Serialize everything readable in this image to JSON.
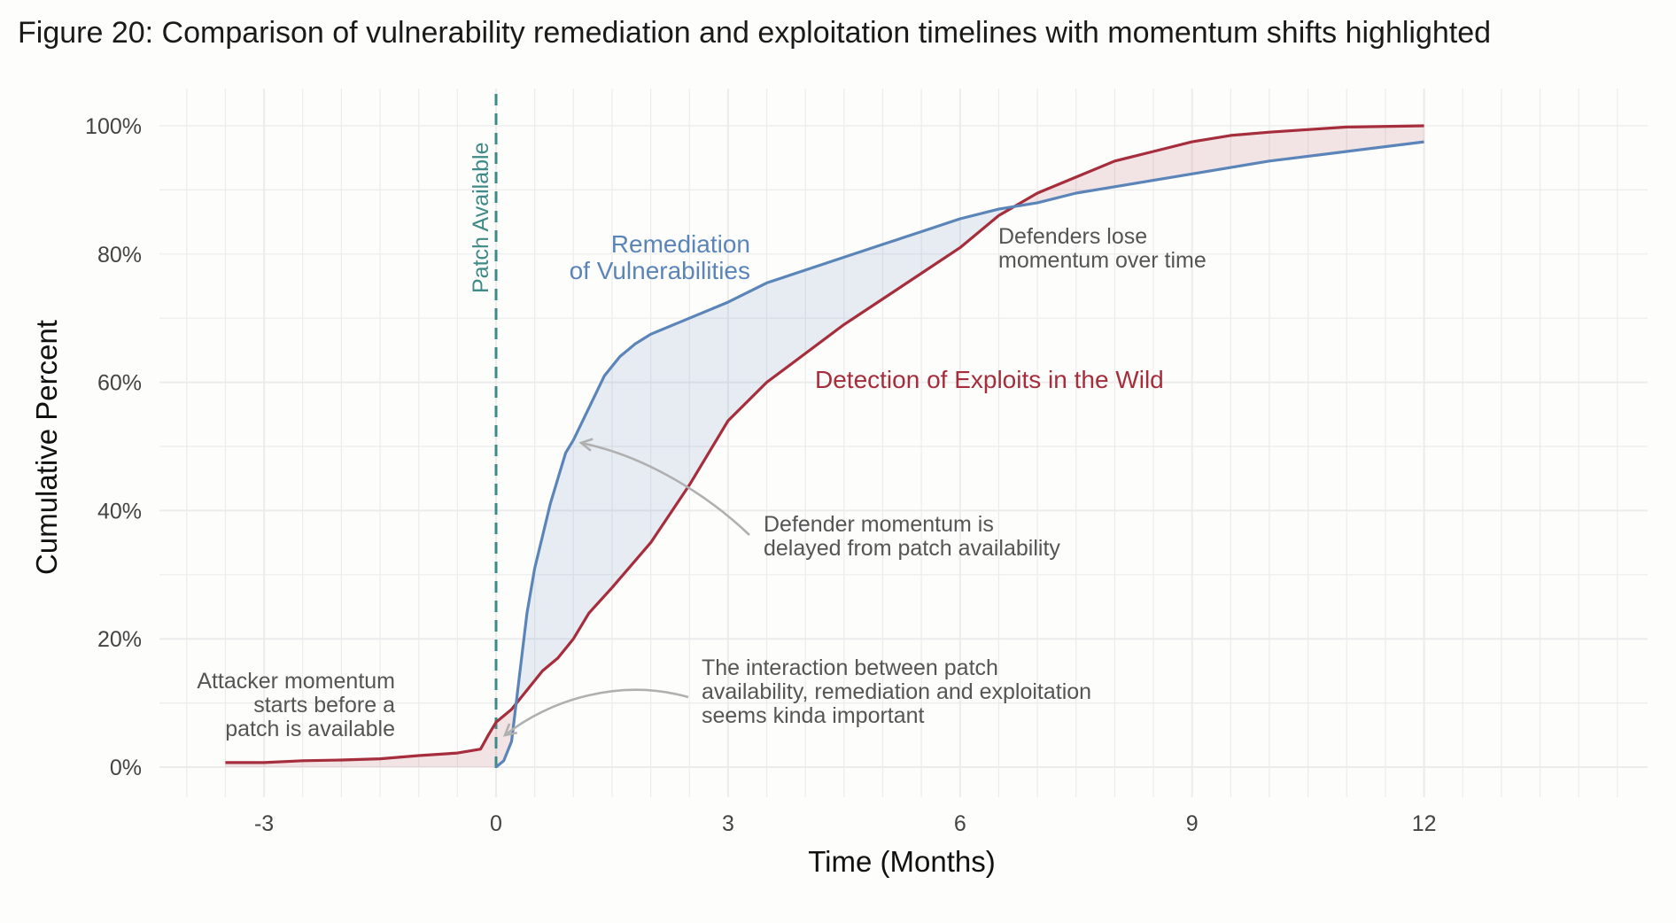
{
  "title": "Figure 20: Comparison of vulnerability remediation and exploitation timelines with momentum shifts highlighted",
  "colors": {
    "remediation": "#5b85b9",
    "exploitation": "#a62d3b",
    "patch_line": "#3e8a86",
    "annotation": "#555555",
    "arrow": "#b0b0b0",
    "grid": "#ececec"
  },
  "chart_data": {
    "type": "line",
    "title": "Figure 20: Comparison of vulnerability remediation and exploitation timelines with momentum shifts highlighted",
    "xlabel": "Time (Months)",
    "ylabel": "Cumulative Percent",
    "xlim": [
      -4,
      15
    ],
    "ylim": [
      -0.04,
      1.04
    ],
    "x_ticks": [
      -3,
      0,
      3,
      6,
      9,
      12
    ],
    "x_tick_labels": [
      "-3",
      "0",
      "3",
      "6",
      "9",
      "12"
    ],
    "y_ticks": [
      0,
      0.2,
      0.4,
      0.6,
      0.8,
      1.0
    ],
    "y_tick_labels": [
      "0%",
      "20%",
      "40%",
      "60%",
      "80%",
      "100%"
    ],
    "grid": true,
    "series": [
      {
        "name": "Remediation of Vulnerabilities",
        "label_lines": [
          "Remediation",
          "of Vulnerabilities"
        ],
        "color": "#5b85b9",
        "x": [
          0,
          0.1,
          0.2,
          0.3,
          0.4,
          0.5,
          0.6,
          0.7,
          0.8,
          0.9,
          1.0,
          1.2,
          1.4,
          1.6,
          1.8,
          2.0,
          2.5,
          3.0,
          3.5,
          4.0,
          4.5,
          5.0,
          5.5,
          6.0,
          6.5,
          7.0,
          7.5,
          8.0,
          9.0,
          10.0,
          11.0,
          12.0
        ],
        "y": [
          0,
          0.01,
          0.04,
          0.14,
          0.24,
          0.31,
          0.36,
          0.41,
          0.45,
          0.49,
          0.51,
          0.56,
          0.61,
          0.64,
          0.66,
          0.675,
          0.7,
          0.725,
          0.755,
          0.775,
          0.795,
          0.815,
          0.835,
          0.855,
          0.87,
          0.88,
          0.895,
          0.905,
          0.925,
          0.945,
          0.96,
          0.975
        ]
      },
      {
        "name": "Detection of Exploits in the Wild",
        "label_lines": [
          "Detection of Exploits in the Wild"
        ],
        "color": "#a62d3b",
        "x": [
          -3.5,
          -3.0,
          -2.5,
          -2.0,
          -1.5,
          -1.0,
          -0.5,
          -0.2,
          -0.1,
          0,
          0.1,
          0.2,
          0.4,
          0.6,
          0.8,
          1.0,
          1.2,
          1.5,
          2.0,
          2.5,
          3.0,
          3.5,
          4.0,
          4.5,
          5.0,
          5.5,
          6.0,
          6.5,
          7.0,
          7.5,
          8.0,
          8.5,
          9.0,
          9.5,
          10.0,
          11.0,
          12.0
        ],
        "y": [
          0.007,
          0.007,
          0.01,
          0.011,
          0.013,
          0.018,
          0.022,
          0.028,
          0.05,
          0.07,
          0.08,
          0.09,
          0.12,
          0.15,
          0.17,
          0.2,
          0.24,
          0.28,
          0.35,
          0.44,
          0.54,
          0.6,
          0.645,
          0.69,
          0.73,
          0.77,
          0.81,
          0.86,
          0.895,
          0.92,
          0.945,
          0.96,
          0.975,
          0.985,
          0.99,
          0.998,
          1.0
        ]
      }
    ],
    "reference_line": {
      "x": 0,
      "label": "Patch Available"
    },
    "annotations": [
      {
        "id": "attacker",
        "lines": [
          "Attacker momentum",
          "starts before a",
          "patch is available"
        ]
      },
      {
        "id": "interaction",
        "lines": [
          "The interaction between patch",
          "availability, remediation and exploitation",
          "seems kinda important"
        ]
      },
      {
        "id": "defender-delay",
        "lines": [
          "Defender momentum is",
          "delayed from patch availability"
        ]
      },
      {
        "id": "defender-lose",
        "lines": [
          "Defenders lose",
          "momentum over time"
        ]
      }
    ]
  }
}
